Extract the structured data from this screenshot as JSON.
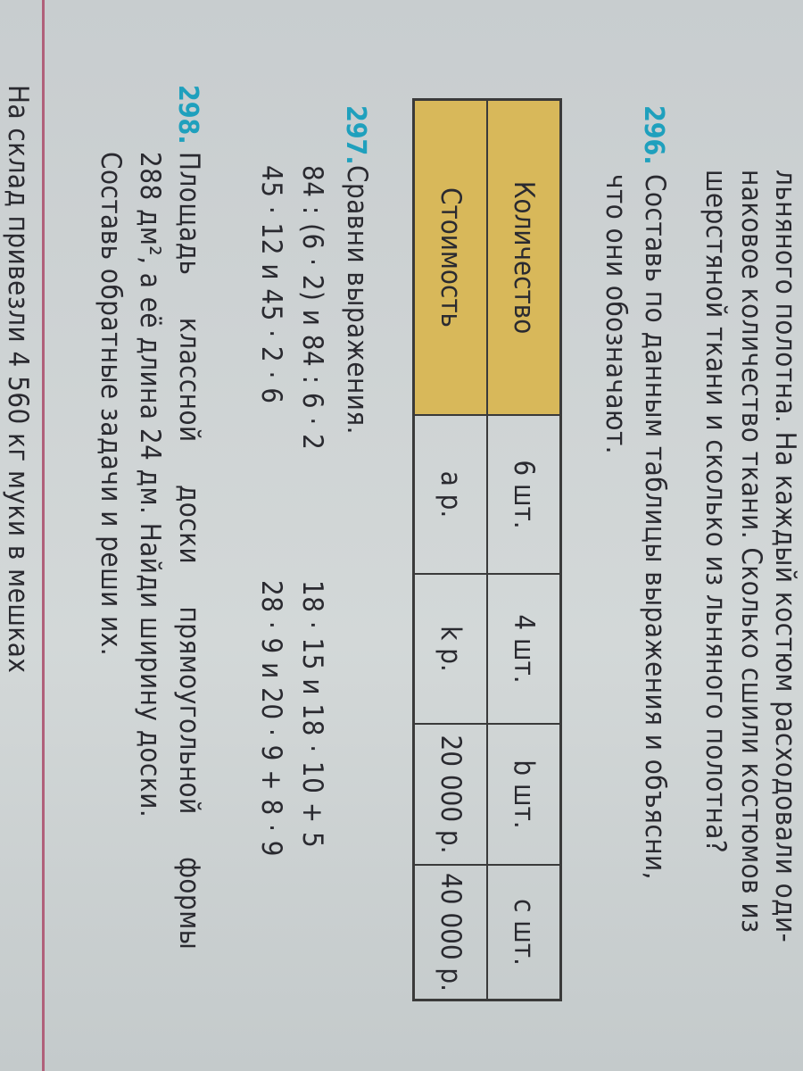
{
  "page": {
    "intro_lines": [
      "льняного полотна. На каждый костюм расходовали оди-",
      "наковое количество ткани. Сколько сшили костюмов из",
      "шерстяной ткани и сколько из льняного полотна?"
    ],
    "exercises": [
      {
        "number": "296.",
        "lines": [
          "Составь по данным таблицы выражения и объясни,",
          "что они обозначают."
        ]
      },
      {
        "number": "297.",
        "lines": [
          "Сравни выражения."
        ],
        "comparisons": [
          [
            "84 : (6 · 2) и 84 : 6 · 2",
            "18 · 15 и 18 · 10 + 5"
          ],
          [
            "45 · 12 и 45 · 2 · 6",
            "28 · 9 и 20 · 9 + 8 · 9"
          ]
        ]
      },
      {
        "number": "298.",
        "lines": [
          "Площадь классной доски прямоугольной формы",
          "288 дм², а её длина 24 дм. Найди ширину доски.",
          "Составь обратные задачи и реши их."
        ]
      }
    ],
    "table": {
      "rows": [
        [
          "Количество",
          "6 шт.",
          "4 шт.",
          "b шт.",
          "c шт."
        ],
        [
          "Стоимость",
          "a р.",
          "k р.",
          "20 000 р.",
          "40 000 р."
        ]
      ]
    },
    "footer": "На склад привезли 4 560 кг муки в мешках"
  }
}
